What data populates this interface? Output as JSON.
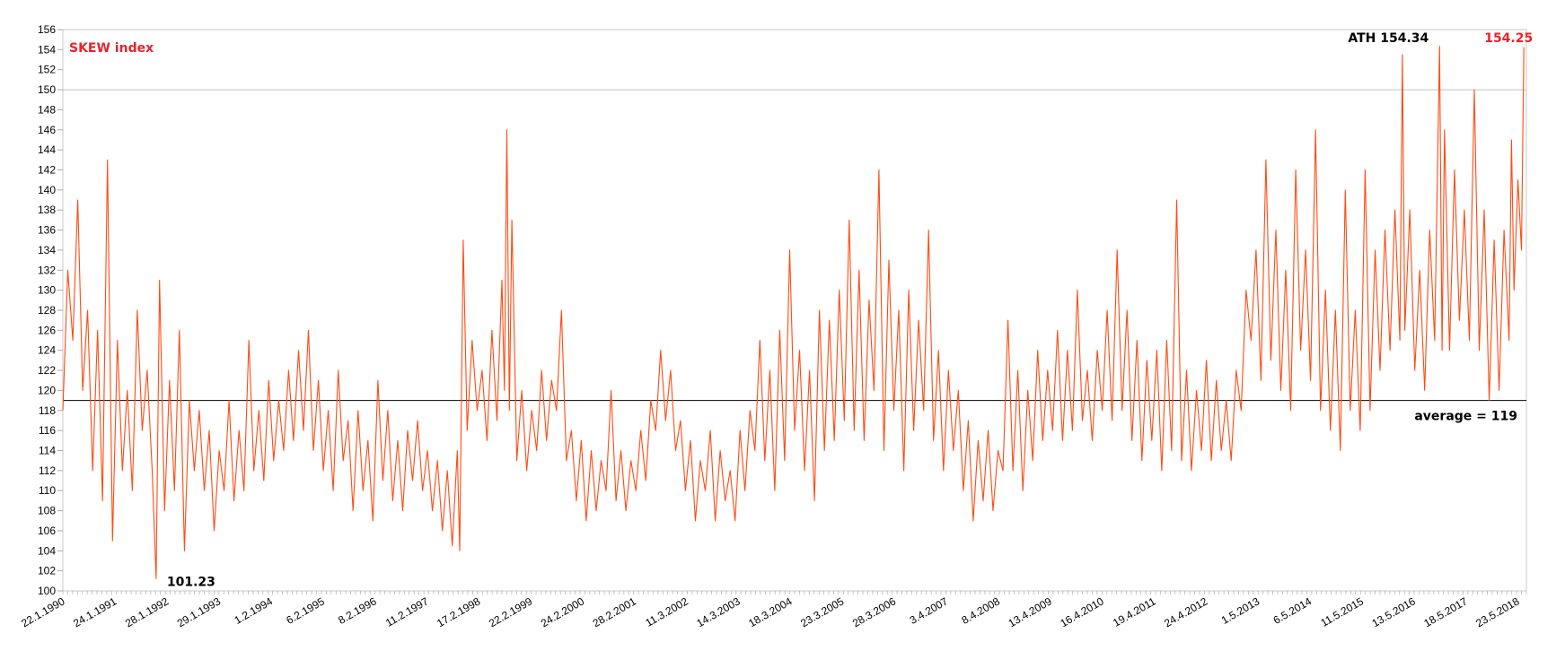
{
  "chart_data": {
    "type": "line",
    "title": "SKEW index",
    "title_color": "#E8232A",
    "line_color": "#FF4A12",
    "xlabel": "",
    "ylabel": "",
    "ylim": [
      100,
      156
    ],
    "y_tick_step": 2,
    "grid": false,
    "x_tick_labels": [
      "22.1.1990",
      "24.1.1991",
      "28.1.1992",
      "29.1.1993",
      "1.2.1994",
      "6.2.1995",
      "8.2.1996",
      "11.2.1997",
      "17.2.1998",
      "22.2.1999",
      "24.2.2000",
      "28.2.2001",
      "11.3.2002",
      "14.3.2003",
      "18.3.2004",
      "23.3.2005",
      "28.3.2006",
      "3.4.2007",
      "8.4.2008",
      "13.4.2009",
      "16.4.2010",
      "19.4.2011",
      "24.4.2012",
      "1.5.2013",
      "6.5.2014",
      "11.5.2015",
      "13.5.2016",
      "18.5.2017",
      "23.5.2018"
    ],
    "series": [
      {
        "values": [
          [
            1990.05,
            118
          ],
          [
            1990.15,
            132
          ],
          [
            1990.25,
            125
          ],
          [
            1990.35,
            139
          ],
          [
            1990.45,
            120
          ],
          [
            1990.55,
            128
          ],
          [
            1990.65,
            112
          ],
          [
            1990.75,
            126
          ],
          [
            1990.85,
            109
          ],
          [
            1990.95,
            143
          ],
          [
            1991.05,
            105
          ],
          [
            1991.15,
            125
          ],
          [
            1991.25,
            112
          ],
          [
            1991.35,
            120
          ],
          [
            1991.45,
            110
          ],
          [
            1991.55,
            128
          ],
          [
            1991.65,
            116
          ],
          [
            1991.75,
            122
          ],
          [
            1991.85,
            112
          ],
          [
            1991.93,
            101.23
          ],
          [
            1992.0,
            131
          ],
          [
            1992.1,
            108
          ],
          [
            1992.2,
            121
          ],
          [
            1992.3,
            110
          ],
          [
            1992.4,
            126
          ],
          [
            1992.5,
            104
          ],
          [
            1992.6,
            119
          ],
          [
            1992.7,
            112
          ],
          [
            1992.8,
            118
          ],
          [
            1992.9,
            110
          ],
          [
            1993.0,
            116
          ],
          [
            1993.1,
            106
          ],
          [
            1993.2,
            114
          ],
          [
            1993.3,
            110
          ],
          [
            1993.4,
            119
          ],
          [
            1993.5,
            109
          ],
          [
            1993.6,
            116
          ],
          [
            1993.7,
            110
          ],
          [
            1993.8,
            125
          ],
          [
            1993.9,
            112
          ],
          [
            1994.0,
            118
          ],
          [
            1994.1,
            111
          ],
          [
            1994.2,
            121
          ],
          [
            1994.3,
            113
          ],
          [
            1994.4,
            119
          ],
          [
            1994.5,
            114
          ],
          [
            1994.6,
            122
          ],
          [
            1994.7,
            115
          ],
          [
            1994.8,
            124
          ],
          [
            1994.9,
            116
          ],
          [
            1995.0,
            126
          ],
          [
            1995.1,
            114
          ],
          [
            1995.2,
            121
          ],
          [
            1995.3,
            112
          ],
          [
            1995.4,
            118
          ],
          [
            1995.5,
            110
          ],
          [
            1995.6,
            122
          ],
          [
            1995.7,
            113
          ],
          [
            1995.8,
            117
          ],
          [
            1995.9,
            108
          ],
          [
            1996.0,
            118
          ],
          [
            1996.1,
            110
          ],
          [
            1996.2,
            115
          ],
          [
            1996.3,
            107
          ],
          [
            1996.4,
            121
          ],
          [
            1996.5,
            111
          ],
          [
            1996.6,
            118
          ],
          [
            1996.7,
            109
          ],
          [
            1996.8,
            115
          ],
          [
            1996.9,
            108
          ],
          [
            1997.0,
            116
          ],
          [
            1997.1,
            111
          ],
          [
            1997.2,
            117
          ],
          [
            1997.3,
            110
          ],
          [
            1997.4,
            114
          ],
          [
            1997.5,
            108
          ],
          [
            1997.6,
            113
          ],
          [
            1997.7,
            106
          ],
          [
            1997.8,
            112
          ],
          [
            1997.9,
            104.5
          ],
          [
            1998.0,
            114
          ],
          [
            1998.05,
            104
          ],
          [
            1998.12,
            135
          ],
          [
            1998.2,
            116
          ],
          [
            1998.3,
            125
          ],
          [
            1998.4,
            118
          ],
          [
            1998.5,
            122
          ],
          [
            1998.6,
            115
          ],
          [
            1998.7,
            126
          ],
          [
            1998.8,
            117
          ],
          [
            1998.9,
            131
          ],
          [
            1998.95,
            120
          ],
          [
            1999.0,
            146
          ],
          [
            1999.05,
            118
          ],
          [
            1999.1,
            137
          ],
          [
            1999.2,
            113
          ],
          [
            1999.3,
            120
          ],
          [
            1999.4,
            112
          ],
          [
            1999.5,
            118
          ],
          [
            1999.6,
            114
          ],
          [
            1999.7,
            122
          ],
          [
            1999.8,
            115
          ],
          [
            1999.9,
            121
          ],
          [
            2000.0,
            118
          ],
          [
            2000.1,
            128
          ],
          [
            2000.2,
            113
          ],
          [
            2000.3,
            116
          ],
          [
            2000.4,
            109
          ],
          [
            2000.5,
            115
          ],
          [
            2000.6,
            107
          ],
          [
            2000.7,
            114
          ],
          [
            2000.8,
            108
          ],
          [
            2000.9,
            113
          ],
          [
            2001.0,
            110
          ],
          [
            2001.1,
            120
          ],
          [
            2001.2,
            109
          ],
          [
            2001.3,
            114
          ],
          [
            2001.4,
            108
          ],
          [
            2001.5,
            113
          ],
          [
            2001.6,
            110
          ],
          [
            2001.7,
            116
          ],
          [
            2001.8,
            111
          ],
          [
            2001.9,
            119
          ],
          [
            2002.0,
            116
          ],
          [
            2002.1,
            124
          ],
          [
            2002.2,
            117
          ],
          [
            2002.3,
            122
          ],
          [
            2002.4,
            114
          ],
          [
            2002.5,
            117
          ],
          [
            2002.6,
            110
          ],
          [
            2002.7,
            115
          ],
          [
            2002.8,
            107
          ],
          [
            2002.9,
            113
          ],
          [
            2003.0,
            110
          ],
          [
            2003.1,
            116
          ],
          [
            2003.2,
            107
          ],
          [
            2003.3,
            114
          ],
          [
            2003.4,
            109
          ],
          [
            2003.5,
            112
          ],
          [
            2003.6,
            107
          ],
          [
            2003.7,
            116
          ],
          [
            2003.8,
            110
          ],
          [
            2003.9,
            118
          ],
          [
            2004.0,
            114
          ],
          [
            2004.1,
            125
          ],
          [
            2004.2,
            113
          ],
          [
            2004.3,
            122
          ],
          [
            2004.4,
            110
          ],
          [
            2004.5,
            126
          ],
          [
            2004.6,
            113
          ],
          [
            2004.7,
            134
          ],
          [
            2004.8,
            116
          ],
          [
            2004.9,
            124
          ],
          [
            2005.0,
            112
          ],
          [
            2005.1,
            122
          ],
          [
            2005.2,
            109
          ],
          [
            2005.3,
            128
          ],
          [
            2005.4,
            114
          ],
          [
            2005.5,
            127
          ],
          [
            2005.6,
            115
          ],
          [
            2005.7,
            130
          ],
          [
            2005.8,
            117
          ],
          [
            2005.9,
            137
          ],
          [
            2006.0,
            116
          ],
          [
            2006.1,
            132
          ],
          [
            2006.2,
            115
          ],
          [
            2006.3,
            129
          ],
          [
            2006.4,
            120
          ],
          [
            2006.5,
            142
          ],
          [
            2006.6,
            114
          ],
          [
            2006.7,
            133
          ],
          [
            2006.8,
            118
          ],
          [
            2006.9,
            128
          ],
          [
            2007.0,
            112
          ],
          [
            2007.1,
            130
          ],
          [
            2007.2,
            116
          ],
          [
            2007.3,
            127
          ],
          [
            2007.4,
            118
          ],
          [
            2007.5,
            136
          ],
          [
            2007.6,
            115
          ],
          [
            2007.7,
            124
          ],
          [
            2007.8,
            112
          ],
          [
            2007.9,
            122
          ],
          [
            2008.0,
            114
          ],
          [
            2008.1,
            120
          ],
          [
            2008.2,
            110
          ],
          [
            2008.3,
            117
          ],
          [
            2008.4,
            107
          ],
          [
            2008.5,
            115
          ],
          [
            2008.6,
            109
          ],
          [
            2008.7,
            116
          ],
          [
            2008.8,
            108
          ],
          [
            2008.9,
            114
          ],
          [
            2009.0,
            112
          ],
          [
            2009.1,
            127
          ],
          [
            2009.2,
            112
          ],
          [
            2009.3,
            122
          ],
          [
            2009.4,
            110
          ],
          [
            2009.5,
            120
          ],
          [
            2009.6,
            113
          ],
          [
            2009.7,
            124
          ],
          [
            2009.8,
            115
          ],
          [
            2009.9,
            122
          ],
          [
            2010.0,
            116
          ],
          [
            2010.1,
            126
          ],
          [
            2010.2,
            115
          ],
          [
            2010.3,
            124
          ],
          [
            2010.4,
            116
          ],
          [
            2010.5,
            130
          ],
          [
            2010.6,
            117
          ],
          [
            2010.7,
            122
          ],
          [
            2010.8,
            115
          ],
          [
            2010.9,
            124
          ],
          [
            2011.0,
            118
          ],
          [
            2011.1,
            128
          ],
          [
            2011.2,
            117
          ],
          [
            2011.3,
            134
          ],
          [
            2011.4,
            118
          ],
          [
            2011.5,
            128
          ],
          [
            2011.6,
            115
          ],
          [
            2011.7,
            125
          ],
          [
            2011.8,
            113
          ],
          [
            2011.9,
            123
          ],
          [
            2012.0,
            115
          ],
          [
            2012.1,
            124
          ],
          [
            2012.2,
            112
          ],
          [
            2012.3,
            125
          ],
          [
            2012.4,
            114
          ],
          [
            2012.5,
            139
          ],
          [
            2012.6,
            113
          ],
          [
            2012.7,
            122
          ],
          [
            2012.8,
            112
          ],
          [
            2012.9,
            120
          ],
          [
            2013.0,
            114
          ],
          [
            2013.1,
            123
          ],
          [
            2013.2,
            113
          ],
          [
            2013.3,
            121
          ],
          [
            2013.4,
            114
          ],
          [
            2013.5,
            119
          ],
          [
            2013.6,
            113
          ],
          [
            2013.7,
            122
          ],
          [
            2013.8,
            118
          ],
          [
            2013.9,
            130
          ],
          [
            2014.0,
            125
          ],
          [
            2014.1,
            134
          ],
          [
            2014.2,
            121
          ],
          [
            2014.3,
            143
          ],
          [
            2014.4,
            123
          ],
          [
            2014.5,
            136
          ],
          [
            2014.6,
            120
          ],
          [
            2014.7,
            132
          ],
          [
            2014.8,
            118
          ],
          [
            2014.9,
            142
          ],
          [
            2015.0,
            124
          ],
          [
            2015.1,
            134
          ],
          [
            2015.2,
            121
          ],
          [
            2015.3,
            146
          ],
          [
            2015.4,
            118
          ],
          [
            2015.5,
            130
          ],
          [
            2015.6,
            116
          ],
          [
            2015.7,
            128
          ],
          [
            2015.8,
            114
          ],
          [
            2015.9,
            140
          ],
          [
            2016.0,
            118
          ],
          [
            2016.1,
            128
          ],
          [
            2016.2,
            116
          ],
          [
            2016.3,
            142
          ],
          [
            2016.4,
            118
          ],
          [
            2016.5,
            134
          ],
          [
            2016.6,
            122
          ],
          [
            2016.7,
            136
          ],
          [
            2016.8,
            124
          ],
          [
            2016.9,
            138
          ],
          [
            2017.0,
            125
          ],
          [
            2017.05,
            153.5
          ],
          [
            2017.1,
            126
          ],
          [
            2017.2,
            138
          ],
          [
            2017.3,
            122
          ],
          [
            2017.4,
            132
          ],
          [
            2017.5,
            120
          ],
          [
            2017.6,
            136
          ],
          [
            2017.7,
            125
          ],
          [
            2017.8,
            154.34
          ],
          [
            2017.85,
            124
          ],
          [
            2017.9,
            146
          ],
          [
            2018.0,
            124
          ],
          [
            2018.1,
            142
          ],
          [
            2018.2,
            127
          ],
          [
            2018.3,
            138
          ],
          [
            2018.4,
            125
          ],
          [
            2018.5,
            150
          ],
          [
            2018.6,
            124
          ],
          [
            2018.7,
            138
          ],
          [
            2018.8,
            119
          ],
          [
            2018.9,
            135
          ],
          [
            2019.0,
            120
          ],
          [
            2019.1,
            136
          ],
          [
            2019.2,
            125
          ],
          [
            2019.25,
            145
          ],
          [
            2019.3,
            130
          ],
          [
            2019.38,
            141
          ],
          [
            2019.45,
            134
          ],
          [
            2019.5,
            154.25
          ]
        ]
      }
    ],
    "average": {
      "value": 119,
      "label": "average = 119"
    },
    "annotations": [
      {
        "text": "101.23",
        "x": 1991.93,
        "y": 101.23,
        "color": "#000000"
      },
      {
        "text": "ATH 154.34",
        "x": 2017.8,
        "y": 154.34,
        "color": "#000000"
      },
      {
        "text": "154.25",
        "x": 2019.5,
        "y": 154.25,
        "color": "#E8232A"
      }
    ],
    "reference_line": {
      "value": 150
    }
  }
}
